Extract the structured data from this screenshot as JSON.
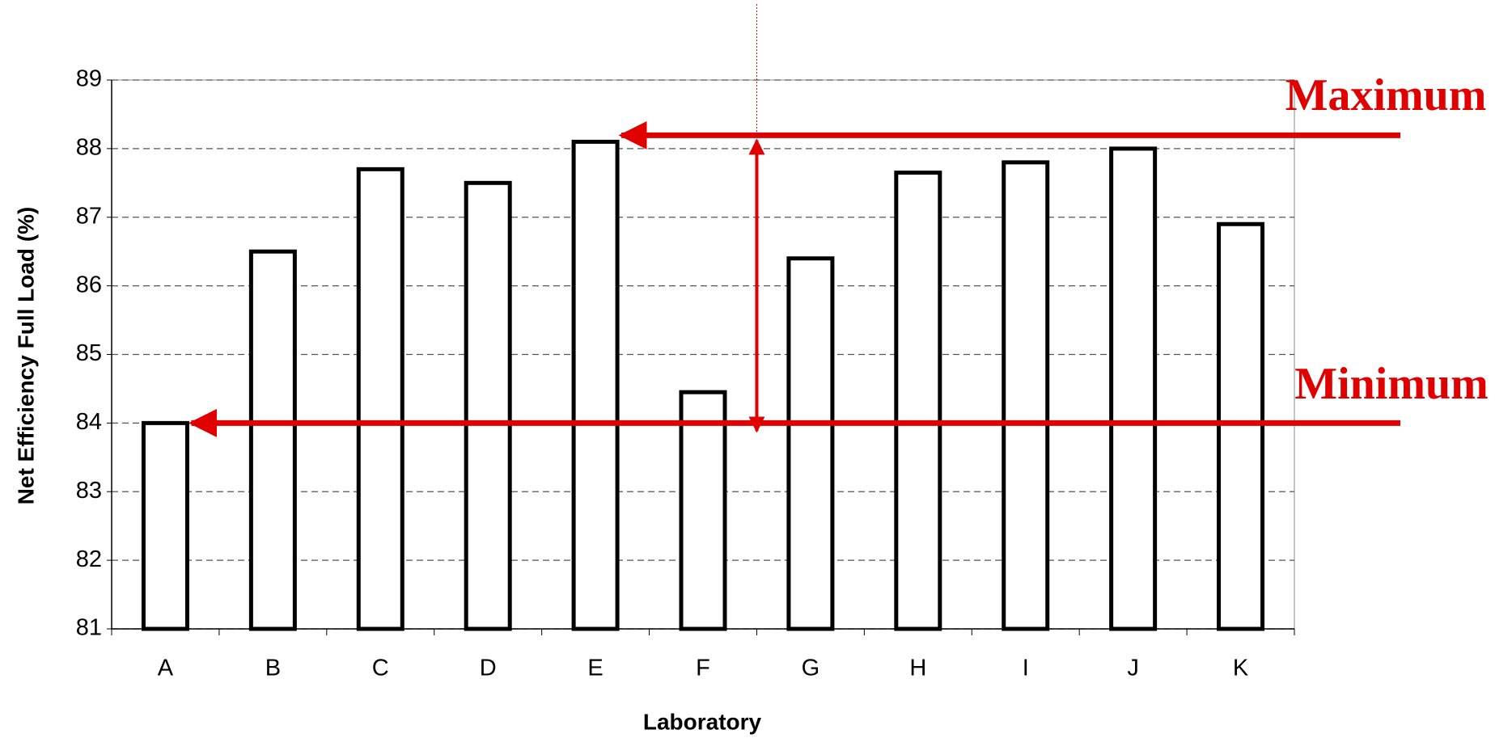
{
  "chart_data": {
    "type": "bar",
    "x_label": "Laboratory",
    "y_label": "Net Efficiency Full Load (%)",
    "categories": [
      "A",
      "B",
      "C",
      "D",
      "E",
      "F",
      "G",
      "H",
      "I",
      "J",
      "K"
    ],
    "values": [
      84.0,
      86.5,
      87.7,
      87.5,
      88.1,
      84.45,
      86.4,
      87.65,
      87.8,
      88.0,
      86.9
    ],
    "color": "#ffffff",
    "ylim": [
      81,
      89
    ],
    "yticks": [
      81,
      82,
      83,
      84,
      85,
      86,
      87,
      88,
      89
    ],
    "grid": true,
    "annotations": {
      "max": "Maximum",
      "min": "Minimum"
    }
  }
}
